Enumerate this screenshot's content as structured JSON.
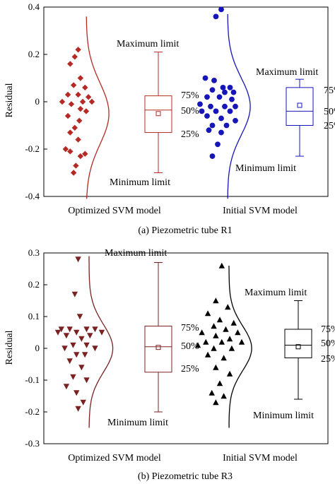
{
  "chart_data": [
    {
      "type": "box-scatter",
      "caption": "(a) Piezometric tube R1",
      "ylabel": "Residual",
      "ylim": [
        -0.4,
        0.4
      ],
      "yticks": [
        0.4,
        0.2,
        0,
        -0.2,
        -0.4
      ],
      "ytick_labels": [
        "0.4",
        "0.2",
        "0",
        "-0.2",
        "-0.4"
      ],
      "categories": [
        "Optimized SVM model",
        "Initial SVM model"
      ],
      "series": [
        {
          "name": "Optimized SVM model",
          "color": "#b52a25",
          "marker": "diamond",
          "points": [
            {
              "x": 0.85,
              "y": 0.22
            },
            {
              "x": 0.82,
              "y": 0.19
            },
            {
              "x": 0.78,
              "y": 0.16
            },
            {
              "x": 0.87,
              "y": 0.1
            },
            {
              "x": 0.81,
              "y": 0.07
            },
            {
              "x": 0.91,
              "y": 0.06
            },
            {
              "x": 0.76,
              "y": 0.03
            },
            {
              "x": 0.85,
              "y": 0.03
            },
            {
              "x": 0.94,
              "y": 0.02
            },
            {
              "x": 0.71,
              "y": 0.0
            },
            {
              "x": 0.89,
              "y": 0.0
            },
            {
              "x": 0.97,
              "y": 0.0
            },
            {
              "x": 0.79,
              "y": -0.01
            },
            {
              "x": 0.87,
              "y": -0.03
            },
            {
              "x": 0.92,
              "y": -0.04
            },
            {
              "x": 0.76,
              "y": -0.06
            },
            {
              "x": 0.86,
              "y": -0.08
            },
            {
              "x": 0.82,
              "y": -0.11
            },
            {
              "x": 0.78,
              "y": -0.13
            },
            {
              "x": 0.85,
              "y": -0.16
            },
            {
              "x": 0.74,
              "y": -0.2
            },
            {
              "x": 0.78,
              "y": -0.21
            },
            {
              "x": 0.91,
              "y": -0.22
            },
            {
              "x": 0.87,
              "y": -0.23
            },
            {
              "x": 0.83,
              "y": -0.27
            },
            {
              "x": 0.81,
              "y": -0.3
            }
          ],
          "curve": {
            "mu": -0.05,
            "sigma": 0.13,
            "ymin": -0.41,
            "ymax": 0.36,
            "amplitude": 0.21
          },
          "box": {
            "max": 0.21,
            "q3": 0.025,
            "median": -0.035,
            "q1": -0.13,
            "min": -0.3,
            "mean": -0.05
          },
          "annotations": {
            "max": "Maximum limit",
            "q3": "75%",
            "median": "50%",
            "q1": "25%",
            "min": "Minimum limit"
          }
        },
        {
          "name": "Initial SVM model",
          "color": "#1515b8",
          "marker": "circle",
          "points": [
            {
              "x": 0.84,
              "y": 0.39
            },
            {
              "x": 0.81,
              "y": 0.36
            },
            {
              "x": 0.75,
              "y": 0.1
            },
            {
              "x": 0.8,
              "y": 0.09
            },
            {
              "x": 0.85,
              "y": 0.06
            },
            {
              "x": 0.89,
              "y": 0.06
            },
            {
              "x": 0.79,
              "y": 0.05
            },
            {
              "x": 0.86,
              "y": 0.04
            },
            {
              "x": 0.91,
              "y": 0.04
            },
            {
              "x": 0.76,
              "y": 0.02
            },
            {
              "x": 0.83,
              "y": 0.02
            },
            {
              "x": 0.9,
              "y": 0.01
            },
            {
              "x": 0.72,
              "y": -0.01
            },
            {
              "x": 0.78,
              "y": -0.02
            },
            {
              "x": 0.86,
              "y": -0.02
            },
            {
              "x": 0.92,
              "y": -0.02
            },
            {
              "x": 0.73,
              "y": -0.04
            },
            {
              "x": 0.81,
              "y": -0.04
            },
            {
              "x": 0.89,
              "y": -0.04
            },
            {
              "x": 0.76,
              "y": -0.06
            },
            {
              "x": 0.84,
              "y": -0.07
            },
            {
              "x": 0.92,
              "y": -0.08
            },
            {
              "x": 0.79,
              "y": -0.1
            },
            {
              "x": 0.87,
              "y": -0.1
            },
            {
              "x": 0.77,
              "y": -0.12
            },
            {
              "x": 0.84,
              "y": -0.13
            },
            {
              "x": 0.82,
              "y": -0.18
            },
            {
              "x": 0.79,
              "y": -0.23
            }
          ],
          "curve": {
            "mu": -0.02,
            "sigma": 0.12,
            "ymin": -0.41,
            "ymax": 0.37,
            "amplitude": 0.21
          },
          "box": {
            "max": 0.095,
            "q3": 0.06,
            "median": -0.04,
            "q1": -0.1,
            "min": -0.23,
            "mean": -0.015
          },
          "annotations": {
            "max": "Maximum limit",
            "q3": "75%",
            "median": "50%",
            "q1": "25%",
            "min": "Minimum limit"
          }
        }
      ]
    },
    {
      "type": "box-scatter",
      "caption": "(b) Piezometric tube R3",
      "ylabel": "Residual",
      "ylim": [
        -0.3,
        0.3
      ],
      "yticks": [
        0.3,
        0.2,
        0.1,
        0,
        -0.1,
        -0.2,
        -0.3
      ],
      "ytick_labels": [
        "0.3",
        "0.2",
        "0.1",
        "0",
        "-0.1",
        "-0.2",
        "-0.3"
      ],
      "categories": [
        "Optimized SVM model",
        "Initial SVM model"
      ],
      "series": [
        {
          "name": "Optimized SVM model",
          "color": "#7a2222",
          "marker": "triangle-down",
          "points": [
            {
              "x": 0.82,
              "y": 0.28
            },
            {
              "x": 0.8,
              "y": 0.17
            },
            {
              "x": 0.83,
              "y": 0.1
            },
            {
              "x": 0.72,
              "y": 0.06
            },
            {
              "x": 0.77,
              "y": 0.06
            },
            {
              "x": 0.87,
              "y": 0.06
            },
            {
              "x": 0.92,
              "y": 0.06
            },
            {
              "x": 0.7,
              "y": 0.05
            },
            {
              "x": 0.81,
              "y": 0.05
            },
            {
              "x": 0.96,
              "y": 0.05
            },
            {
              "x": 0.75,
              "y": 0.04
            },
            {
              "x": 0.89,
              "y": 0.04
            },
            {
              "x": 0.84,
              "y": 0.03
            },
            {
              "x": 0.79,
              "y": 0.01
            },
            {
              "x": 0.87,
              "y": 0.01
            },
            {
              "x": 0.74,
              "y": 0.0
            },
            {
              "x": 0.92,
              "y": 0.0
            },
            {
              "x": 0.81,
              "y": -0.02
            },
            {
              "x": 0.86,
              "y": -0.02
            },
            {
              "x": 0.77,
              "y": -0.04
            },
            {
              "x": 0.84,
              "y": -0.06
            },
            {
              "x": 0.79,
              "y": -0.09
            },
            {
              "x": 0.87,
              "y": -0.1
            },
            {
              "x": 0.75,
              "y": -0.12
            },
            {
              "x": 0.81,
              "y": -0.14
            },
            {
              "x": 0.85,
              "y": -0.17
            },
            {
              "x": 0.82,
              "y": -0.19
            }
          ],
          "curve": {
            "mu": 0.0,
            "sigma": 0.075,
            "ymin": -0.25,
            "ymax": 0.29,
            "amplitude": 0.22
          },
          "box": {
            "max": 0.27,
            "q3": 0.07,
            "median": 0.005,
            "q1": -0.075,
            "min": -0.2,
            "mean": 0.003
          },
          "annotations": {
            "max": "Maximum limit",
            "q3": "75%",
            "median": "50%",
            "q1": "25%",
            "min": "Minimum limit"
          }
        },
        {
          "name": "Initial SVM model",
          "color": "#000000",
          "marker": "triangle-up",
          "points": [
            {
              "x": 0.83,
              "y": 0.26
            },
            {
              "x": 0.8,
              "y": 0.15
            },
            {
              "x": 0.86,
              "y": 0.13
            },
            {
              "x": 0.76,
              "y": 0.11
            },
            {
              "x": 0.82,
              "y": 0.09
            },
            {
              "x": 0.89,
              "y": 0.08
            },
            {
              "x": 0.79,
              "y": 0.07
            },
            {
              "x": 0.85,
              "y": 0.06
            },
            {
              "x": 0.73,
              "y": 0.05
            },
            {
              "x": 0.91,
              "y": 0.05
            },
            {
              "x": 0.8,
              "y": 0.04
            },
            {
              "x": 0.87,
              "y": 0.03
            },
            {
              "x": 0.75,
              "y": 0.02
            },
            {
              "x": 0.83,
              "y": 0.02
            },
            {
              "x": 0.93,
              "y": 0.02
            },
            {
              "x": 0.71,
              "y": 0.01
            },
            {
              "x": 0.79,
              "y": 0.0
            },
            {
              "x": 0.88,
              "y": 0.0
            },
            {
              "x": 0.76,
              "y": -0.02
            },
            {
              "x": 0.84,
              "y": -0.03
            },
            {
              "x": 0.8,
              "y": -0.06
            },
            {
              "x": 0.87,
              "y": -0.08
            },
            {
              "x": 0.82,
              "y": -0.11
            },
            {
              "x": 0.78,
              "y": -0.14
            },
            {
              "x": 0.84,
              "y": -0.15
            },
            {
              "x": 0.8,
              "y": -0.17
            }
          ],
          "curve": {
            "mu": 0.0,
            "sigma": 0.07,
            "ymin": -0.25,
            "ymax": 0.26,
            "amplitude": 0.21
          },
          "box": {
            "max": 0.15,
            "q3": 0.06,
            "median": 0.01,
            "q1": -0.03,
            "min": -0.16,
            "mean": 0.005
          },
          "annotations": {
            "max": "Maximum limit",
            "q3": "75%",
            "median": "50%",
            "q1": "25%",
            "min": "Minimum limit"
          }
        }
      ]
    }
  ]
}
